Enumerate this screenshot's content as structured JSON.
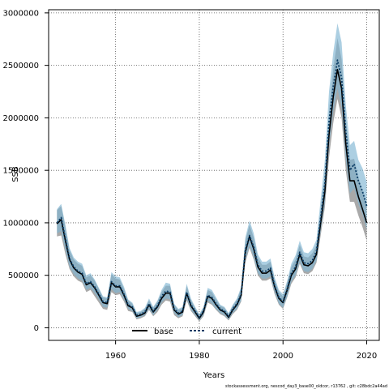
{
  "chart_data": {
    "type": "line",
    "xlabel": "Years",
    "ylabel": "SSB",
    "xlim": [
      1944,
      2023
    ],
    "ylim": [
      -120000,
      3030000
    ],
    "x_ticks": [
      1960,
      1980,
      2000,
      2020
    ],
    "y_ticks": [
      0,
      500000,
      1000000,
      1500000,
      2000000,
      2500000,
      3000000
    ],
    "x_tick_labels": [
      "1960",
      "1980",
      "2000",
      "2020"
    ],
    "y_tick_labels": [
      "0",
      "500000",
      "1000000",
      "1500000",
      "2000000",
      "2500000",
      "3000000"
    ],
    "grid": true,
    "legend_position": "bottom-left",
    "colors": {
      "base_band": "#9a9a9a",
      "current_band": "#7fb6d2",
      "base_line": "#000000",
      "current_line": "#0b3d66"
    },
    "x": [
      1946,
      1947,
      1948,
      1949,
      1950,
      1951,
      1952,
      1953,
      1954,
      1955,
      1956,
      1957,
      1958,
      1959,
      1960,
      1961,
      1962,
      1963,
      1964,
      1965,
      1966,
      1967,
      1968,
      1969,
      1970,
      1971,
      1972,
      1973,
      1974,
      1975,
      1976,
      1977,
      1978,
      1979,
      1980,
      1981,
      1982,
      1983,
      1984,
      1985,
      1986,
      1987,
      1988,
      1989,
      1990,
      1991,
      1992,
      1993,
      1994,
      1995,
      1996,
      1997,
      1998,
      1999,
      2000,
      2001,
      2002,
      2003,
      2004,
      2005,
      2006,
      2007,
      2008,
      2009,
      2010,
      2011,
      2012,
      2013,
      2014,
      2015,
      2016,
      2017,
      2018,
      2019,
      2020
    ],
    "series": [
      {
        "name": "base",
        "values": [
          990000,
          1030000,
          830000,
          650000,
          570000,
          530000,
          510000,
          410000,
          430000,
          380000,
          310000,
          240000,
          230000,
          430000,
          390000,
          390000,
          310000,
          210000,
          190000,
          110000,
          120000,
          140000,
          220000,
          150000,
          200000,
          280000,
          330000,
          330000,
          170000,
          130000,
          150000,
          330000,
          210000,
          150000,
          90000,
          150000,
          300000,
          280000,
          220000,
          170000,
          150000,
          100000,
          170000,
          220000,
          310000,
          720000,
          870000,
          750000,
          580000,
          520000,
          520000,
          550000,
          390000,
          280000,
          240000,
          360000,
          500000,
          560000,
          700000,
          600000,
          590000,
          620000,
          700000,
          1000000,
          1300000,
          1840000,
          2200000,
          2460000,
          2280000,
          1750000,
          1400000,
          1400000,
          1250000,
          1130000,
          1000000
        ],
        "lower": [
          870000,
          880000,
          700000,
          560000,
          490000,
          450000,
          430000,
          340000,
          360000,
          300000,
          240000,
          180000,
          170000,
          340000,
          310000,
          320000,
          250000,
          160000,
          150000,
          80000,
          90000,
          110000,
          170000,
          110000,
          150000,
          220000,
          260000,
          250000,
          120000,
          90000,
          110000,
          260000,
          160000,
          110000,
          60000,
          110000,
          240000,
          220000,
          170000,
          130000,
          110000,
          70000,
          130000,
          170000,
          250000,
          620000,
          760000,
          650000,
          500000,
          450000,
          450000,
          470000,
          320000,
          220000,
          180000,
          290000,
          420000,
          480000,
          610000,
          520000,
          510000,
          540000,
          620000,
          880000,
          1150000,
          1620000,
          1950000,
          2180000,
          2000000,
          1500000,
          1200000,
          1200000,
          1070000,
          960000,
          830000
        ],
        "upper": [
          1120000,
          1160000,
          960000,
          740000,
          650000,
          610000,
          590000,
          480000,
          500000,
          450000,
          370000,
          290000,
          280000,
          510000,
          470000,
          460000,
          370000,
          260000,
          230000,
          140000,
          150000,
          180000,
          260000,
          190000,
          250000,
          340000,
          400000,
          400000,
          220000,
          170000,
          190000,
          400000,
          260000,
          190000,
          120000,
          190000,
          360000,
          340000,
          270000,
          210000,
          190000,
          130000,
          210000,
          270000,
          370000,
          830000,
          980000,
          860000,
          670000,
          600000,
          600000,
          630000,
          460000,
          340000,
          300000,
          430000,
          580000,
          650000,
          790000,
          680000,
          670000,
          710000,
          790000,
          1130000,
          1470000,
          2060000,
          2460000,
          2760000,
          2560000,
          2000000,
          1600000,
          1610000,
          1440000,
          1300000,
          1180000
        ]
      },
      {
        "name": "current",
        "values": [
          1000000,
          1050000,
          850000,
          660000,
          580000,
          540000,
          520000,
          420000,
          440000,
          390000,
          320000,
          250000,
          240000,
          440000,
          400000,
          400000,
          320000,
          220000,
          200000,
          120000,
          130000,
          150000,
          230000,
          160000,
          210000,
          300000,
          350000,
          340000,
          180000,
          140000,
          160000,
          340000,
          220000,
          160000,
          100000,
          160000,
          310000,
          290000,
          230000,
          180000,
          160000,
          110000,
          180000,
          230000,
          320000,
          740000,
          880000,
          770000,
          600000,
          540000,
          540000,
          570000,
          400000,
          290000,
          250000,
          370000,
          520000,
          580000,
          720000,
          620000,
          610000,
          640000,
          730000,
          1050000,
          1380000,
          1960000,
          2300000,
          2550000,
          2380000,
          1870000,
          1500000,
          1560000,
          1400000,
          1300000,
          1160000
        ],
        "lower": [
          900000,
          920000,
          740000,
          580000,
          510000,
          470000,
          450000,
          360000,
          380000,
          330000,
          270000,
          200000,
          190000,
          370000,
          330000,
          340000,
          270000,
          180000,
          160000,
          90000,
          100000,
          120000,
          180000,
          120000,
          170000,
          240000,
          280000,
          270000,
          140000,
          100000,
          120000,
          280000,
          170000,
          120000,
          70000,
          120000,
          260000,
          230000,
          180000,
          140000,
          120000,
          80000,
          140000,
          180000,
          260000,
          650000,
          780000,
          670000,
          520000,
          470000,
          470000,
          490000,
          340000,
          230000,
          190000,
          300000,
          440000,
          500000,
          630000,
          540000,
          530000,
          560000,
          640000,
          920000,
          1200000,
          1730000,
          2060000,
          2280000,
          2100000,
          1600000,
          1280000,
          1330000,
          1180000,
          1080000,
          940000
        ],
        "upper": [
          1130000,
          1180000,
          980000,
          760000,
          670000,
          630000,
          610000,
          500000,
          520000,
          460000,
          380000,
          300000,
          290000,
          530000,
          490000,
          480000,
          390000,
          270000,
          240000,
          150000,
          160000,
          190000,
          280000,
          200000,
          260000,
          360000,
          430000,
          420000,
          230000,
          180000,
          200000,
          420000,
          280000,
          200000,
          130000,
          200000,
          380000,
          360000,
          290000,
          220000,
          200000,
          140000,
          220000,
          280000,
          390000,
          860000,
          1020000,
          900000,
          700000,
          630000,
          630000,
          660000,
          480000,
          360000,
          320000,
          450000,
          610000,
          690000,
          830000,
          720000,
          710000,
          750000,
          840000,
          1220000,
          1600000,
          2250000,
          2620000,
          2900000,
          2720000,
          2120000,
          1740000,
          1780000,
          1600000,
          1520000,
          1390000
        ]
      }
    ],
    "footnote": "stockassessment.org, nescod_day3_base00_oldcor, r13762 , git: c28bdc2a44ad"
  }
}
